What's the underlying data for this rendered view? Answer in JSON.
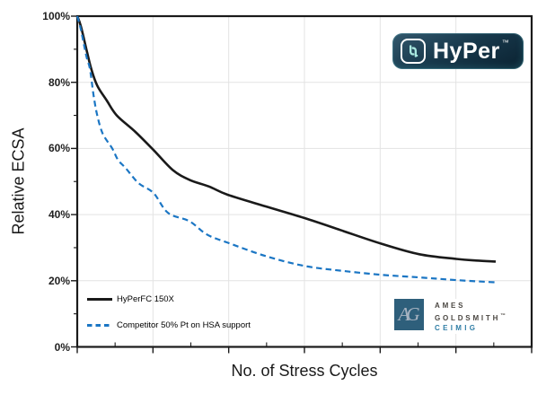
{
  "chart_data": {
    "type": "line",
    "xlabel": "No. of Stress Cycles",
    "ylabel": "Relative ECSA",
    "ylim": [
      0,
      100
    ],
    "y_tick_labels_top_to_bottom": [
      "100%",
      "80%",
      "60%",
      "40%",
      "20%",
      "0%"
    ],
    "y_major_step": 20,
    "y_minor_step": 10,
    "x_axis": {
      "numeric_labels_shown": false,
      "major_divisions": 6,
      "minor_ticks_per_major": 1
    },
    "grid": {
      "horizontal": true,
      "vertical": true,
      "color": "#e3e3e3"
    },
    "axis_color": "#1a1a1a",
    "legend_position": "inside-bottom-left",
    "x_values_are_fraction_of_axis": true,
    "series": [
      {
        "name": "HyPerFC 150X",
        "color": "#1a1a1a",
        "line": "solid",
        "points": [
          [
            0,
            100
          ],
          [
            0.008,
            97
          ],
          [
            0.021,
            89.5
          ],
          [
            0.031,
            84
          ],
          [
            0.044,
            79
          ],
          [
            0.065,
            74.5
          ],
          [
            0.087,
            70
          ],
          [
            0.128,
            65
          ],
          [
            0.168,
            59.5
          ],
          [
            0.21,
            53.5
          ],
          [
            0.247,
            50.5
          ],
          [
            0.29,
            48.5
          ],
          [
            0.331,
            46
          ],
          [
            0.414,
            42.5
          ],
          [
            0.499,
            39
          ],
          [
            0.582,
            35.2
          ],
          [
            0.669,
            31.2
          ],
          [
            0.753,
            28
          ],
          [
            0.834,
            26.6
          ],
          [
            0.878,
            26.1
          ],
          [
            0.921,
            25.8
          ]
        ]
      },
      {
        "name": "Competitor 50% Pt on HSA support",
        "color": "#1b76c4",
        "line": "dashed",
        "points": [
          [
            0,
            100
          ],
          [
            0.008,
            96
          ],
          [
            0.02,
            88
          ],
          [
            0.028,
            84
          ],
          [
            0.036,
            76
          ],
          [
            0.044,
            70
          ],
          [
            0.056,
            64.5
          ],
          [
            0.077,
            60
          ],
          [
            0.09,
            56.5
          ],
          [
            0.107,
            54
          ],
          [
            0.135,
            49.5
          ],
          [
            0.168,
            46.5
          ],
          [
            0.2,
            40.5
          ],
          [
            0.247,
            38
          ],
          [
            0.285,
            34
          ],
          [
            0.331,
            31.5
          ],
          [
            0.414,
            27.5
          ],
          [
            0.499,
            24.5
          ],
          [
            0.582,
            23
          ],
          [
            0.669,
            21.8
          ],
          [
            0.753,
            21
          ],
          [
            0.834,
            20.2
          ],
          [
            0.921,
            19.5
          ]
        ]
      }
    ]
  },
  "logos": {
    "hyper": {
      "wordmark": "HyPer",
      "tm": "™"
    },
    "ames": {
      "monogram": "AG",
      "line1": "AMES",
      "line2": "GOLDSMITH",
      "tm": "™",
      "line3": "CEIMIG"
    }
  },
  "colors": {
    "series_black": "#1a1a1a",
    "series_blue": "#1b76c4",
    "ames_square": "#2e5f7b",
    "ames_text": "#4b4742",
    "ames_ceimig": "#2f7da5"
  }
}
